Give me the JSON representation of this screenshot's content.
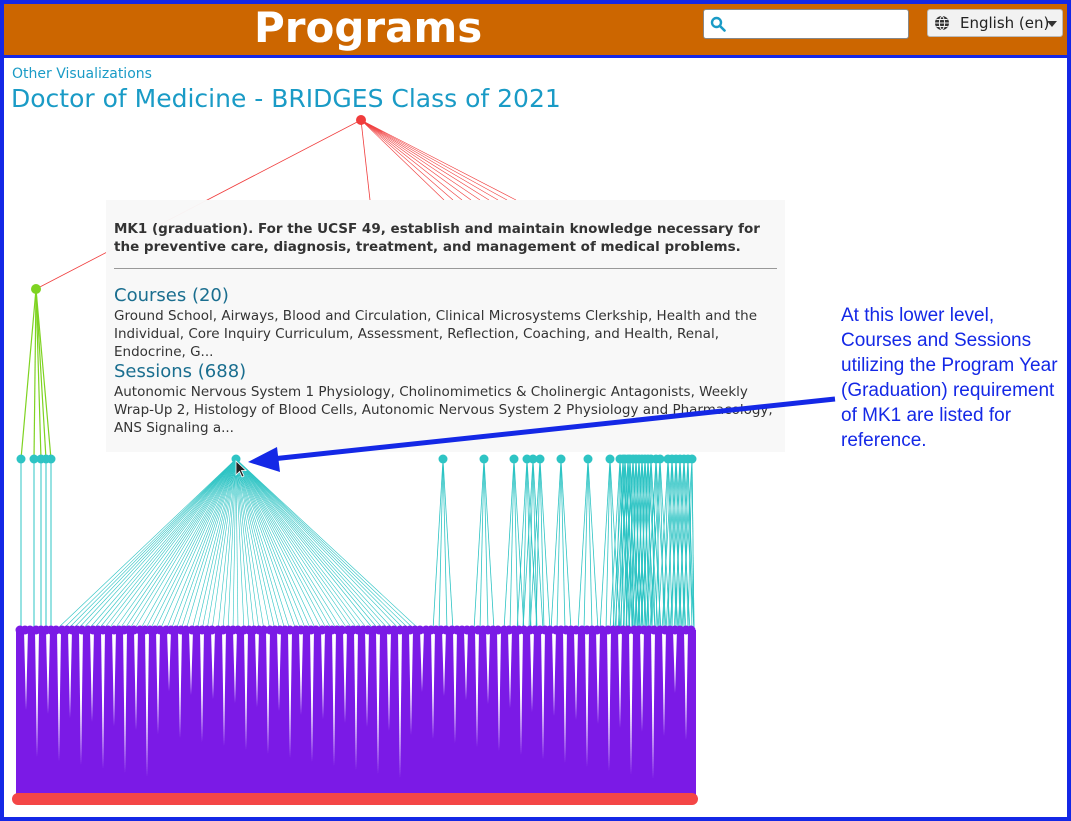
{
  "header": {
    "title": "Programs",
    "search": {
      "value": "",
      "placeholder": ""
    },
    "language": {
      "label": "English (en)"
    }
  },
  "nav": {
    "other_visualizations": "Other Visualizations"
  },
  "page": {
    "title": "Doctor of Medicine - BRIDGES Class of 2021"
  },
  "tooltip": {
    "description": "MK1 (graduation). For the UCSF 49, establish and maintain knowledge necessary for the preventive care, diagnosis, treatment, and management of medical problems.",
    "courses_heading": "Courses (20)",
    "courses_list": "Ground School, Airways, Blood and Circulation, Clinical Microsystems Clerkship, Health and the Individual, Core Inquiry Curriculum, Assessment, Reflection, Coaching, and Health, Renal, Endocrine, G...",
    "sessions_heading": "Sessions (688)",
    "sessions_list": "Autonomic Nervous System 1 Physiology, Cholinomimetics & Cholinergic Antagonists, Weekly Wrap-Up 2, Histology of Blood Cells, Autonomic Nervous System 2 Physiology and Pharmacology, ANS Signaling a..."
  },
  "annotation": {
    "text": "At this lower level, Courses and Sessions utilizing the Program Year (Graduation) requirement of MK1 are listed for reference."
  },
  "colors": {
    "header_bg": "#cc6600",
    "frame_border": "#1428e6",
    "link": "#1a9bc6",
    "program_node": "#f03c3c",
    "year_node": "#7ed321",
    "competency_node": "#2ec4c4",
    "session_node": "#7b1ae6",
    "root_bar": "#f44646",
    "annotation": "#1428e6"
  }
}
